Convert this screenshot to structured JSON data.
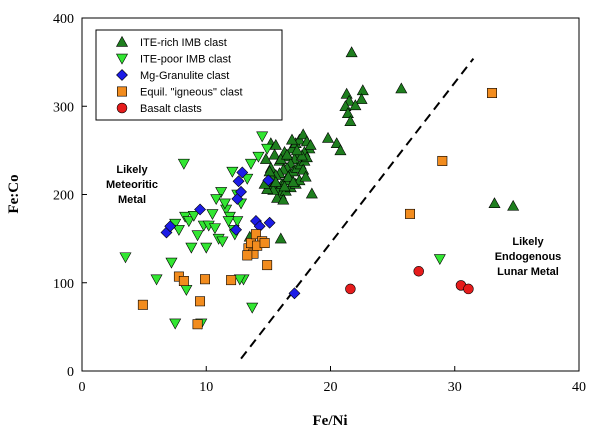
{
  "chart_data": {
    "type": "scatter",
    "xlabel": "Fe/Ni",
    "ylabel": "Fe:Co",
    "xlim": [
      0,
      40
    ],
    "ylim": [
      0,
      400
    ],
    "xticks": [
      "0",
      "10",
      "20",
      "30",
      "40"
    ],
    "yticks": [
      "0",
      "100",
      "200",
      "300",
      "400"
    ],
    "grid": false,
    "legend_position": "top-left",
    "annotations": [
      {
        "lines": [
          "Likely",
          "Meteoritic",
          "Metal"
        ]
      },
      {
        "lines": [
          "Likely",
          "Endogenous",
          "Lunar Metal"
        ]
      }
    ],
    "boundary_line": {
      "style": "dashed",
      "points": [
        [
          12.8,
          14
        ],
        [
          31.5,
          354
        ]
      ]
    },
    "series": [
      {
        "name": "ITE-rich IMB clast",
        "marker": "triangle-up",
        "color": "#1E7E1E",
        "points": [
          [
            21.7,
            361
          ],
          [
            25.7,
            320
          ],
          [
            22.6,
            318
          ],
          [
            21.3,
            314
          ],
          [
            22.5,
            308
          ],
          [
            21.5,
            306
          ],
          [
            21.2,
            300
          ],
          [
            22.0,
            301
          ],
          [
            21.4,
            292
          ],
          [
            21.6,
            283
          ],
          [
            20.5,
            258
          ],
          [
            19.8,
            264
          ],
          [
            20.8,
            250
          ],
          [
            18.5,
            201
          ],
          [
            16.0,
            150
          ],
          [
            33.2,
            190
          ],
          [
            34.7,
            187
          ],
          [
            13.5,
            152
          ],
          [
            15.2,
            258
          ],
          [
            15.6,
            256
          ],
          [
            14.8,
            240
          ],
          [
            15.2,
            230
          ],
          [
            15.5,
            245
          ],
          [
            15.9,
            238
          ],
          [
            16.3,
            248
          ],
          [
            16.6,
            243
          ],
          [
            16.9,
            252
          ],
          [
            17.2,
            258
          ],
          [
            17.5,
            262
          ],
          [
            17.8,
            268
          ],
          [
            18.1,
            260
          ],
          [
            18.3,
            252
          ],
          [
            17.9,
            248
          ],
          [
            17.4,
            246
          ],
          [
            17.1,
            240
          ],
          [
            16.8,
            235
          ],
          [
            16.5,
            230
          ],
          [
            16.2,
            228
          ],
          [
            15.9,
            224
          ],
          [
            15.6,
            222
          ],
          [
            15.3,
            218
          ],
          [
            15.0,
            214
          ],
          [
            15.4,
            210
          ],
          [
            15.8,
            206
          ],
          [
            16.1,
            212
          ],
          [
            16.4,
            216
          ],
          [
            16.7,
            222
          ],
          [
            17.0,
            226
          ],
          [
            17.3,
            230
          ],
          [
            17.6,
            234
          ],
          [
            17.9,
            238
          ],
          [
            18.1,
            242
          ],
          [
            16.0,
            200
          ],
          [
            16.4,
            204
          ],
          [
            16.8,
            208
          ],
          [
            17.2,
            212
          ],
          [
            17.5,
            216
          ],
          [
            15.7,
            196
          ],
          [
            16.2,
            194
          ],
          [
            15.4,
            205
          ],
          [
            14.9,
            206
          ],
          [
            16.6,
            220
          ],
          [
            17.7,
            244
          ],
          [
            18.4,
            256
          ],
          [
            16.9,
            262
          ],
          [
            17.3,
            250
          ],
          [
            16.0,
            240
          ],
          [
            15.1,
            226
          ],
          [
            14.7,
            212
          ],
          [
            17.8,
            228
          ],
          [
            18.0,
            220
          ],
          [
            16.5,
            245
          ],
          [
            17.0,
            214
          ],
          [
            16.3,
            209
          ],
          [
            15.6,
            214
          ]
        ]
      },
      {
        "name": "ITE-poor IMB clast",
        "marker": "triangle-down",
        "color": "#32E632",
        "points": [
          [
            3.5,
            129
          ],
          [
            6.0,
            104
          ],
          [
            7.2,
            123
          ],
          [
            7.5,
            54
          ],
          [
            8.1,
            102
          ],
          [
            8.4,
            92
          ],
          [
            9.6,
            54
          ],
          [
            7.5,
            167
          ],
          [
            7.8,
            160
          ],
          [
            8.3,
            175
          ],
          [
            8.6,
            170
          ],
          [
            9.0,
            176
          ],
          [
            9.3,
            154
          ],
          [
            8.8,
            140
          ],
          [
            9.8,
            165
          ],
          [
            10.2,
            165
          ],
          [
            10.5,
            178
          ],
          [
            10.7,
            162
          ],
          [
            11.0,
            150
          ],
          [
            11.3,
            147
          ],
          [
            11.6,
            183
          ],
          [
            11.9,
            175
          ],
          [
            12.2,
            160
          ],
          [
            12.5,
            170
          ],
          [
            12.8,
            190
          ],
          [
            11.2,
            203
          ],
          [
            11.5,
            190
          ],
          [
            12.1,
            226
          ],
          [
            12.5,
            200
          ],
          [
            13.0,
            104
          ],
          [
            13.7,
            72
          ],
          [
            14.5,
            266
          ],
          [
            14.9,
            252
          ],
          [
            14.2,
            243
          ],
          [
            13.6,
            235
          ],
          [
            12.7,
            104
          ],
          [
            8.2,
            235
          ],
          [
            28.8,
            127
          ],
          [
            10.0,
            140
          ],
          [
            11.8,
            170
          ],
          [
            12.3,
            155
          ],
          [
            10.8,
            195
          ],
          [
            13.3,
            218
          ]
        ]
      },
      {
        "name": "Mg-Granulite clast",
        "marker": "diamond",
        "color": "#1C1CE6",
        "points": [
          [
            6.8,
            157
          ],
          [
            7.1,
            164
          ],
          [
            9.5,
            183
          ],
          [
            12.4,
            160
          ],
          [
            12.5,
            195
          ],
          [
            12.6,
            215
          ],
          [
            12.8,
            203
          ],
          [
            14.0,
            170
          ],
          [
            14.3,
            164
          ],
          [
            15.1,
            168
          ],
          [
            15.0,
            216
          ],
          [
            17.1,
            88
          ],
          [
            12.9,
            225
          ]
        ]
      },
      {
        "name": "Equil. \"igneous\" clast",
        "marker": "square",
        "color": "#F28C1E",
        "points": [
          [
            4.9,
            75
          ],
          [
            7.8,
            107
          ],
          [
            8.2,
            102
          ],
          [
            9.3,
            53
          ],
          [
            9.5,
            79
          ],
          [
            9.9,
            104
          ],
          [
            12.0,
            103
          ],
          [
            13.4,
            139
          ],
          [
            13.6,
            145
          ],
          [
            13.8,
            133
          ],
          [
            14.0,
            155
          ],
          [
            14.5,
            147
          ],
          [
            14.9,
            120
          ],
          [
            14.1,
            142
          ],
          [
            14.7,
            145
          ],
          [
            13.3,
            131
          ],
          [
            26.4,
            178
          ],
          [
            29.0,
            238
          ],
          [
            33.0,
            315
          ]
        ]
      },
      {
        "name": "Basalt clasts",
        "marker": "circle",
        "color": "#E61C1C",
        "points": [
          [
            21.6,
            93
          ],
          [
            27.1,
            113
          ],
          [
            30.5,
            97
          ],
          [
            31.1,
            93
          ]
        ]
      }
    ]
  }
}
